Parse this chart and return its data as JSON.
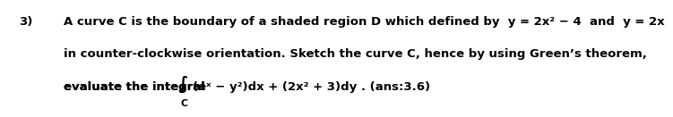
{
  "number": "3)",
  "line1": "A curve C is the boundary of a shaded region D which defined by  y = 2x² − 4  and  y = 2x",
  "line2": "in counter-clockwise orientation. Sketch the curve C, hence by using Green’s theorem,",
  "line3_pre": "evaluate the integral ",
  "line3_int": "∫",
  "line3_sub": "C",
  "line3_post": "(eˣ − y²)dx + (2x² + 3)dy . (ans:3.6)",
  "background_color": "#ffffff",
  "text_color": "#000000",
  "fontsize": 9.5
}
